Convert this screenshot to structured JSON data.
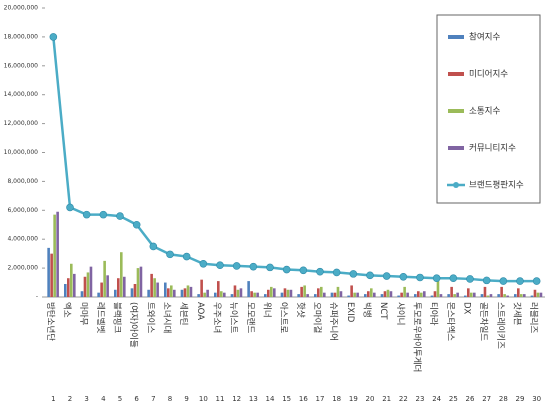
{
  "chart_data": {
    "type": "bar_line",
    "categories": [
      "방탄소년단",
      "엑소",
      "마마무",
      "레드벨벳",
      "블랙핑크",
      "(여자)아이들",
      "트와이스",
      "소녀시대",
      "세븐틴",
      "AOA",
      "우주소녀",
      "뉴이스트",
      "모모랜드",
      "위너",
      "아스트로",
      "핫샷",
      "오마이걸",
      "슈퍼주니어",
      "EXID",
      "빅뱅",
      "NCT",
      "샤이니",
      "투모로우바이투게더",
      "티아라",
      "몬스타엑스",
      "DX",
      "골든차일드",
      "스트레이키즈",
      "갓세븐",
      "러블리즈"
    ],
    "ranks": [
      1,
      2,
      3,
      4,
      5,
      6,
      7,
      8,
      9,
      10,
      11,
      12,
      13,
      14,
      15,
      16,
      17,
      18,
      19,
      20,
      21,
      22,
      23,
      24,
      25,
      26,
      27,
      28,
      29,
      30
    ],
    "series": [
      {
        "name": "참여지수",
        "color": "#4f81bd",
        "values": [
          3400000,
          900000,
          400000,
          300000,
          500000,
          600000,
          500000,
          1000000,
          500000,
          200000,
          300000,
          200000,
          1100000,
          200000,
          300000,
          200000,
          200000,
          300000,
          100000,
          200000,
          200000,
          100000,
          200000,
          100000,
          200000,
          100000,
          200000,
          200000,
          200000,
          100000
        ]
      },
      {
        "name": "미디어지수",
        "color": "#c0504d",
        "values": [
          3000000,
          1300000,
          1400000,
          1000000,
          1300000,
          900000,
          1600000,
          600000,
          600000,
          1200000,
          1100000,
          800000,
          400000,
          500000,
          600000,
          700000,
          600000,
          300000,
          800000,
          400000,
          400000,
          300000,
          400000,
          400000,
          700000,
          600000,
          700000,
          700000,
          600000,
          500000
        ]
      },
      {
        "name": "소통지수",
        "color": "#9bbb59",
        "values": [
          5700000,
          2300000,
          1700000,
          2500000,
          3100000,
          2000000,
          1300000,
          800000,
          800000,
          300000,
          400000,
          500000,
          300000,
          700000,
          500000,
          800000,
          700000,
          700000,
          300000,
          600000,
          500000,
          700000,
          300000,
          1100000,
          200000,
          300000,
          100000,
          200000,
          200000,
          300000
        ]
      },
      {
        "name": "커뮤니티지수",
        "color": "#8064a2",
        "values": [
          5900000,
          1600000,
          2100000,
          1500000,
          1400000,
          2100000,
          1000000,
          500000,
          700000,
          500000,
          300000,
          600000,
          300000,
          600000,
          500000,
          200000,
          300000,
          400000,
          300000,
          300000,
          400000,
          300000,
          400000,
          200000,
          300000,
          300000,
          200000,
          100000,
          200000,
          300000
        ]
      },
      {
        "name": "브랜드평판지수",
        "color": "#4bacc6",
        "line": true,
        "values": [
          18000000,
          6200000,
          5700000,
          5700000,
          5600000,
          5000000,
          3500000,
          2950000,
          2800000,
          2300000,
          2200000,
          2150000,
          2100000,
          2050000,
          1900000,
          1850000,
          1750000,
          1700000,
          1600000,
          1500000,
          1450000,
          1400000,
          1350000,
          1300000,
          1300000,
          1250000,
          1150000,
          1100000,
          1100000,
          1100000
        ]
      }
    ],
    "ylim": [
      0,
      20000000
    ],
    "yticks": [
      {
        "value": 0,
        "label": "-"
      },
      {
        "value": 2000000,
        "label": "2,000,000"
      },
      {
        "value": 4000000,
        "label": "4,000,000"
      },
      {
        "value": 6000000,
        "label": "6,000,000"
      },
      {
        "value": 8000000,
        "label": "8,000,000"
      },
      {
        "value": 10000000,
        "label": "10,000,000"
      },
      {
        "value": 12000000,
        "label": "12,000,000"
      },
      {
        "value": 14000000,
        "label": "14,000,000"
      },
      {
        "value": 16000000,
        "label": "16,000,000"
      },
      {
        "value": 18000000,
        "label": "18,000,000"
      },
      {
        "value": 20000000,
        "label": "20,000,000"
      }
    ],
    "legend": "upper right"
  }
}
